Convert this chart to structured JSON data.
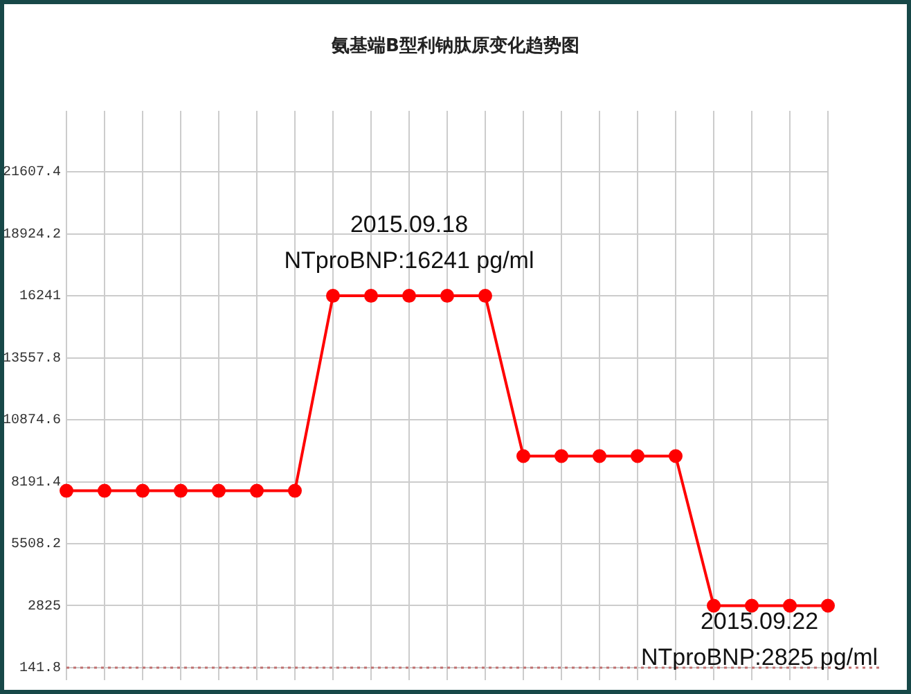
{
  "chart_data": {
    "type": "line",
    "title": "氨基端B型利钠肽原变化趋势图",
    "categories": [
      null,
      null,
      null,
      null,
      null,
      null,
      null,
      null,
      null,
      null,
      null,
      null,
      null,
      null,
      null,
      null,
      null,
      null,
      null,
      null,
      null
    ],
    "series": [
      {
        "color": "#ff0000",
        "values": [
          7800,
          7800,
          7800,
          7800,
          7800,
          7800,
          7800,
          16241,
          16241,
          16241,
          16241,
          16241,
          9300,
          9300,
          9300,
          9300,
          9300,
          2825,
          2825,
          2825,
          2825
        ]
      }
    ],
    "ylim": [
      -400,
      24250
    ],
    "yticks": [
      141.8,
      2825,
      5508.2,
      8191.4,
      10874.6,
      13557.8,
      16241,
      18924.2,
      21607.4
    ],
    "grid": true,
    "legend": false,
    "tick_labels": "y",
    "marker": "circle",
    "line_style": "solid",
    "ref_lines": [
      {
        "axis": "y",
        "value": 141.8,
        "color": "#c07070",
        "line_style": "dotted"
      }
    ],
    "annotations": [
      "2015.09.18\nNTproBNP:16241 pg/ml",
      "2015.09.22\nNTproBNP:2825 pg/ml"
    ]
  }
}
